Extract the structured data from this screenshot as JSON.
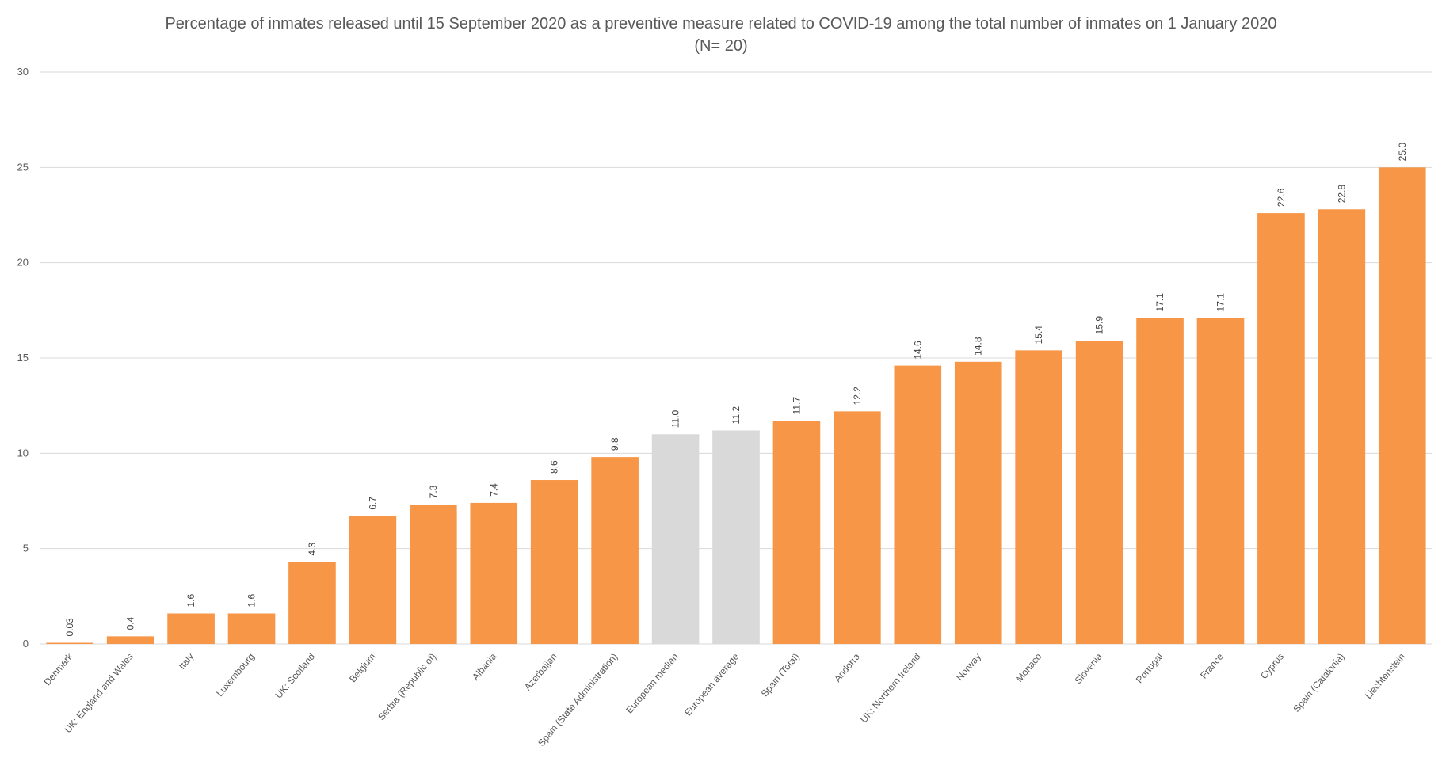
{
  "chart_data": {
    "type": "bar",
    "title": "Percentage of inmates released until 15 September 2020 as a preventive measure related to COVID-19 among the total number of inmates on 1 January 2020 (N= 20)",
    "xlabel": "",
    "ylabel": "",
    "ylim": [
      0,
      30
    ],
    "yticks": [
      0,
      5,
      10,
      15,
      20,
      25,
      30
    ],
    "grid": true,
    "legend": "none",
    "colors": {
      "country": "#f79646",
      "reference": "#d9d9d9",
      "gridline": "#d9d9d9"
    },
    "categories": [
      "Denmark",
      "UK: England and Wales",
      "Italy",
      "Luxembourg",
      "UK: Scotland",
      "Belgium",
      "Serbia (Republic of)",
      "Albania",
      "Azerbaijan",
      "Spain (State Administration)",
      "European median",
      "European average",
      "Spain (Total)",
      "Andorra",
      "UK: Northern Ireland",
      "Norway",
      "Monaco",
      "Slovenia",
      "Portugal",
      "France",
      "Cyprus",
      "Spain (Catalonia)",
      "Liechtenstein"
    ],
    "values": [
      0.03,
      0.4,
      1.6,
      1.6,
      4.3,
      6.7,
      7.3,
      7.4,
      8.6,
      9.8,
      11.0,
      11.2,
      11.7,
      12.2,
      14.6,
      14.8,
      15.4,
      15.9,
      17.1,
      17.1,
      22.6,
      22.8,
      25.0
    ],
    "data_labels": [
      "0.03",
      "0.4",
      "1.6",
      "1.6",
      "4.3",
      "6.7",
      "7.3",
      "7.4",
      "8.6",
      "9.8",
      "11.0",
      "11.2",
      "11.7",
      "12.2",
      "14.6",
      "14.8",
      "15.4",
      "15.9",
      "17.1",
      "17.1",
      "22.6",
      "22.8",
      "25.0"
    ],
    "reference_categories": [
      "European median",
      "European average"
    ]
  }
}
